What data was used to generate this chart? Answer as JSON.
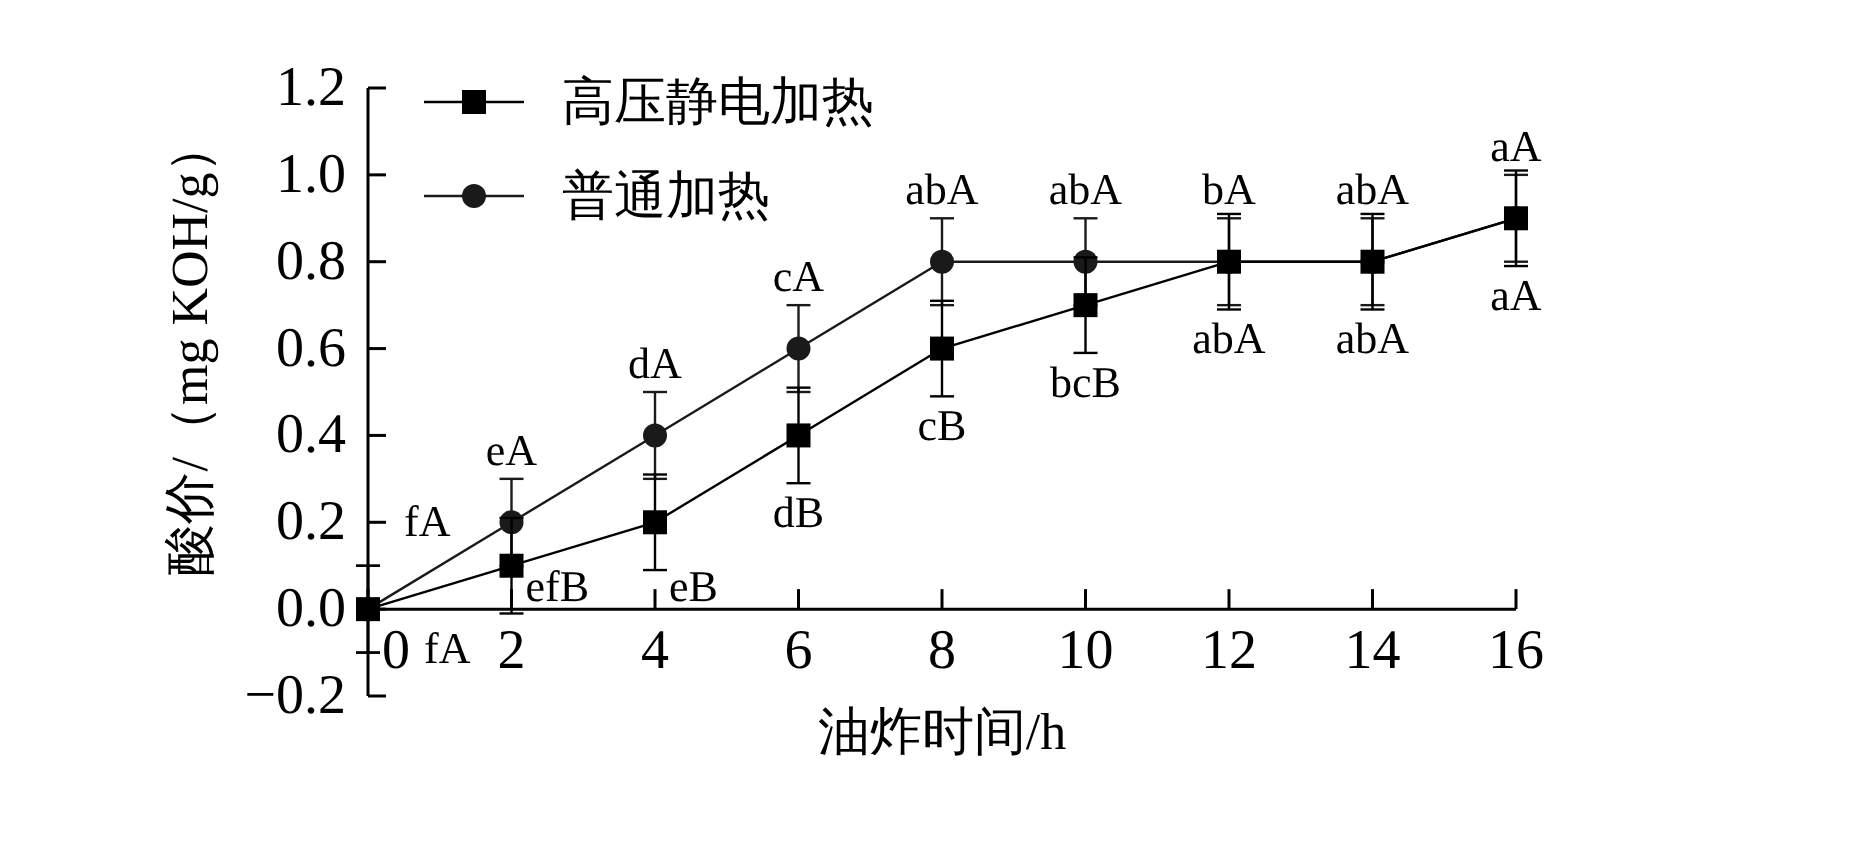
{
  "chart_data": {
    "type": "line",
    "xlabel": "油炸时间/h",
    "ylabel": "酸价/（mg KOH/g）",
    "legend": "top left",
    "x": [
      0,
      2,
      4,
      6,
      8,
      10,
      12,
      14,
      16
    ],
    "xlim": [
      0,
      16
    ],
    "xticks": [
      0,
      2,
      4,
      6,
      8,
      10,
      12,
      14,
      16
    ],
    "ylim": [
      -0.2,
      1.2
    ],
    "yticks": [
      {
        "value": -0.2,
        "label": "−0.2"
      },
      {
        "value": 0,
        "label": "0.0"
      },
      {
        "value": 0.2,
        "label": "0.2"
      },
      {
        "value": 0.4,
        "label": "0.4"
      },
      {
        "value": 0.6,
        "label": "0.6"
      },
      {
        "value": 0.8,
        "label": "0.8"
      },
      {
        "value": 1,
        "label": "1.0"
      },
      {
        "value": 1.2,
        "label": "1.2"
      }
    ],
    "series": [
      {
        "name": "高压静电加热",
        "color": "#000000",
        "marker": "square",
        "values": [
          0,
          0.1,
          0.2,
          0.4,
          0.6,
          0.7,
          0.8,
          0.8,
          0.9
        ],
        "errors": [
          0.1,
          0.11,
          0.11,
          0.11,
          0.11,
          0.11,
          0.11,
          0.11,
          0.11
        ],
        "value_labels": [
          "fA",
          "efB",
          "eB",
          "dB",
          "cB",
          "bcB",
          "abA",
          "abA",
          "aA"
        ]
      },
      {
        "name": "普通加热",
        "color": "#1a1a1a",
        "marker": "circle",
        "values": [
          0,
          0.2,
          0.4,
          0.6,
          0.8,
          0.8,
          0.8,
          0.8,
          0.9
        ],
        "errors": [
          0.1,
          0.1,
          0.1,
          0.1,
          0.1,
          0.1,
          0.1,
          0.1,
          0.1
        ],
        "value_labels": [
          "fA",
          "eA",
          "dA",
          "cA",
          "abA",
          "abA",
          "bA",
          "abA",
          "aA"
        ]
      }
    ]
  }
}
